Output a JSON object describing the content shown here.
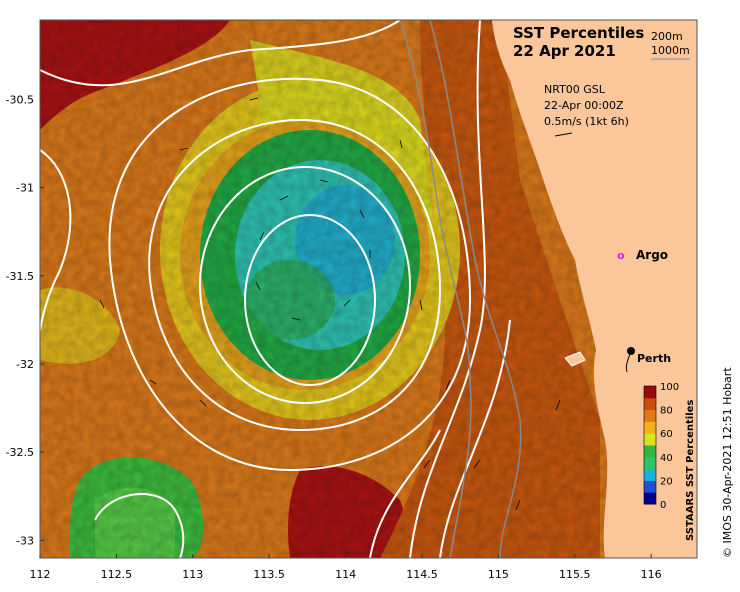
{
  "title": "SST Percentiles",
  "date": "22 Apr 2021",
  "contour_legend": {
    "shallow": "200m",
    "deep": "1000m"
  },
  "current_info": {
    "product": "NRT00 GSL",
    "time": "22-Apr 00:00Z",
    "scale": "0.5m/s (1kt 6h)"
  },
  "labels": {
    "argo": "Argo",
    "argo_marker": "o",
    "perth": "Perth"
  },
  "credit": "© IMOS 30-Apr-2021 12:51 Hobart",
  "colorbar": {
    "title": "SSTAARS SST Percentiles",
    "ticks": [
      "100",
      "80",
      "60",
      "40",
      "20",
      "0"
    ],
    "colors": [
      "#00008b",
      "#1f4fd6",
      "#19b3d9",
      "#2fc46a",
      "#35b33c",
      "#d8e31c",
      "#f0b21a",
      "#e07a17",
      "#c94f0f",
      "#9b0a0a"
    ]
  },
  "colors": {
    "land": "#fbc79a",
    "cold": "#33c2b8",
    "green": "#2db34a",
    "yellow": "#e0e01e",
    "orange": "#e08a1a",
    "red": "#b01010",
    "argo": "#e020e0"
  },
  "axes": {
    "x_ticks": [
      "112",
      "112.5",
      "113",
      "113.5",
      "114",
      "114.5",
      "115",
      "115.5",
      "116"
    ],
    "y_ticks": [
      "-30.5",
      "-31",
      "-31.5",
      "-32",
      "-32.5",
      "-33"
    ],
    "xlim": [
      112,
      116.3
    ],
    "ylim": [
      -33.1,
      -30.05
    ]
  },
  "points": {
    "argo": {
      "lon": 115.8,
      "lat": -31.4
    },
    "perth": {
      "lon": 115.86,
      "lat": -31.95
    }
  }
}
